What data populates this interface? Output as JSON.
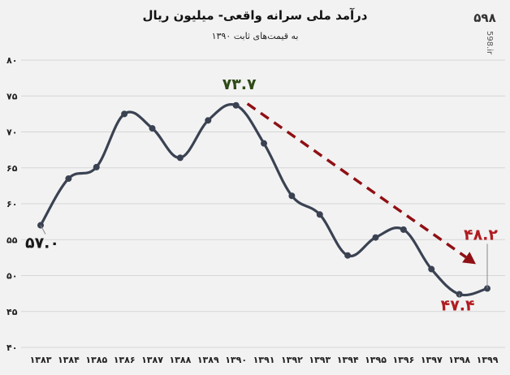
{
  "header": {
    "title": "درآمد ملی سرانه واقعی- میلیون ریال",
    "subtitle": "به قیمت‌های ثابت ۱۳۹۰",
    "logo": "۵۹۸",
    "site": "598.ir"
  },
  "colors": {
    "line": "#3a4252",
    "marker": "#3a4252",
    "trend_arrow": "#8f1014",
    "grid": "#d6d6d6",
    "label_red": "#b01c20",
    "label_green": "#2e4a16",
    "label_dark": "#1a1a1a"
  },
  "chart_data": {
    "type": "line",
    "title": "درآمد ملی سرانه واقعی- میلیون ریال",
    "subtitle": "به قیمت‌های ثابت ۱۳۹۰",
    "xlabel": "",
    "ylabel": "",
    "ylim": [
      40,
      80
    ],
    "yticks": [
      "۴۰",
      "۴۵",
      "۵۰",
      "۵۵",
      "۶۰",
      "۶۵",
      "۷۰",
      "۷۵",
      "۸۰"
    ],
    "ytick_values": [
      40,
      45,
      50,
      55,
      60,
      65,
      70,
      75,
      80
    ],
    "grid": true,
    "legend": "none",
    "categories": [
      "۱۳۸۳",
      "۱۳۸۴",
      "۱۳۸۵",
      "۱۳۸۶",
      "۱۳۸۷",
      "۱۳۸۸",
      "۱۳۸۹",
      "۱۳۹۰",
      "۱۳۹۱",
      "۱۳۹۲",
      "۱۳۹۳",
      "۱۳۹۴",
      "۱۳۹۵",
      "۱۳۹۶",
      "۱۳۹۷",
      "۱۳۹۸",
      "۱۳۹۹"
    ],
    "x": [
      1383,
      1384,
      1385,
      1386,
      1387,
      1388,
      1389,
      1390,
      1391,
      1392,
      1393,
      1394,
      1395,
      1396,
      1397,
      1398,
      1399
    ],
    "series": [
      {
        "values": [
          57.0,
          63.5,
          65.1,
          72.5,
          70.5,
          66.4,
          71.6,
          73.7,
          68.4,
          61.1,
          58.5,
          52.8,
          55.3,
          56.4,
          50.9,
          47.4,
          48.2
        ]
      }
    ],
    "trend_arrow": {
      "from_index": 7,
      "to_index": 16
    },
    "annotations": [
      {
        "index": 0,
        "text": "۵۷.۰"
      },
      {
        "index": 7,
        "text": "۷۳.۷"
      },
      {
        "index": 15,
        "text": "۴۷.۴"
      },
      {
        "index": 16,
        "text": "۴۸.۲"
      }
    ]
  }
}
